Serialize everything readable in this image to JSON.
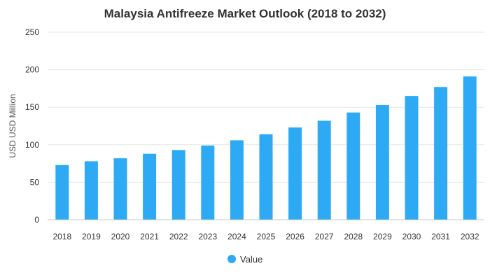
{
  "chart_data": {
    "type": "bar",
    "title": "Malaysia Antifreeze Market Outlook (2018 to 2032)",
    "xlabel": "",
    "ylabel": "USD USD Million",
    "ylim": [
      0,
      250
    ],
    "yticks": [
      0,
      50,
      100,
      150,
      200,
      250
    ],
    "grid": true,
    "legend_position": "bottom-center",
    "categories": [
      "2018",
      "2019",
      "2020",
      "2021",
      "2022",
      "2023",
      "2024",
      "2025",
      "2026",
      "2027",
      "2028",
      "2029",
      "2030",
      "2031",
      "2032"
    ],
    "series": [
      {
        "name": "Value",
        "color": "#2eaaf5",
        "values": [
          73,
          78,
          82,
          88,
          93,
          99,
          106,
          114,
          123,
          132,
          143,
          153,
          165,
          177,
          191
        ]
      }
    ]
  }
}
